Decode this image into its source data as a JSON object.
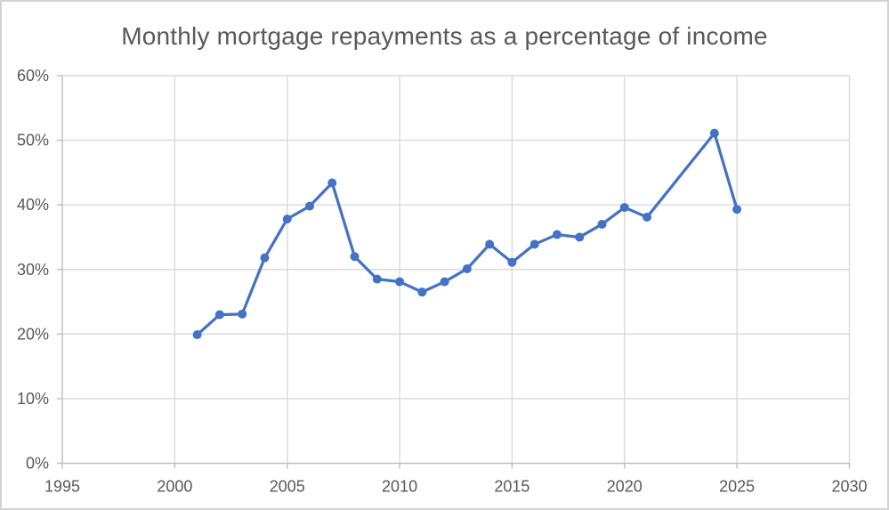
{
  "window": {
    "background": "#ffffff",
    "border_color": "#d3d3d3"
  },
  "chart_data": {
    "type": "line",
    "title": "Monthly mortgage repayments as a percentage of income",
    "xlabel": "",
    "ylabel": "",
    "x": [
      2001,
      2002,
      2003,
      2004,
      2005,
      2006,
      2007,
      2008,
      2009,
      2010,
      2011,
      2012,
      2013,
      2014,
      2015,
      2016,
      2017,
      2018,
      2019,
      2020,
      2021,
      2024,
      2025
    ],
    "y": [
      19.9,
      23.0,
      23.1,
      31.8,
      37.8,
      39.8,
      43.4,
      32.0,
      28.5,
      28.1,
      26.5,
      28.1,
      30.1,
      33.9,
      31.1,
      33.9,
      35.4,
      35.0,
      37.0,
      39.6,
      38.1,
      51.1,
      39.3
    ],
    "xlim": [
      1995,
      2030
    ],
    "ylim": [
      0,
      60
    ],
    "x_ticks": [
      {
        "value": 1995,
        "label": "1995"
      },
      {
        "value": 2000,
        "label": "2000"
      },
      {
        "value": 2005,
        "label": "2005"
      },
      {
        "value": 2010,
        "label": "2010"
      },
      {
        "value": 2015,
        "label": "2015"
      },
      {
        "value": 2020,
        "label": "2020"
      },
      {
        "value": 2025,
        "label": "2025"
      },
      {
        "value": 2030,
        "label": "2030"
      }
    ],
    "y_ticks": [
      {
        "value": 0,
        "label": "0%"
      },
      {
        "value": 10,
        "label": "10%"
      },
      {
        "value": 20,
        "label": "20%"
      },
      {
        "value": 30,
        "label": "30%"
      },
      {
        "value": 40,
        "label": "40%"
      },
      {
        "value": 50,
        "label": "50%"
      },
      {
        "value": 60,
        "label": "60%"
      }
    ],
    "grid": true,
    "legend_position": "none",
    "colors": {
      "series": "#4472C4",
      "gridline": "#D9D9D9",
      "axis": "#BFBFBF",
      "tick_text": "#595959",
      "title_text": "#595959"
    },
    "marker_radius": 5,
    "line_width": 3.25
  }
}
